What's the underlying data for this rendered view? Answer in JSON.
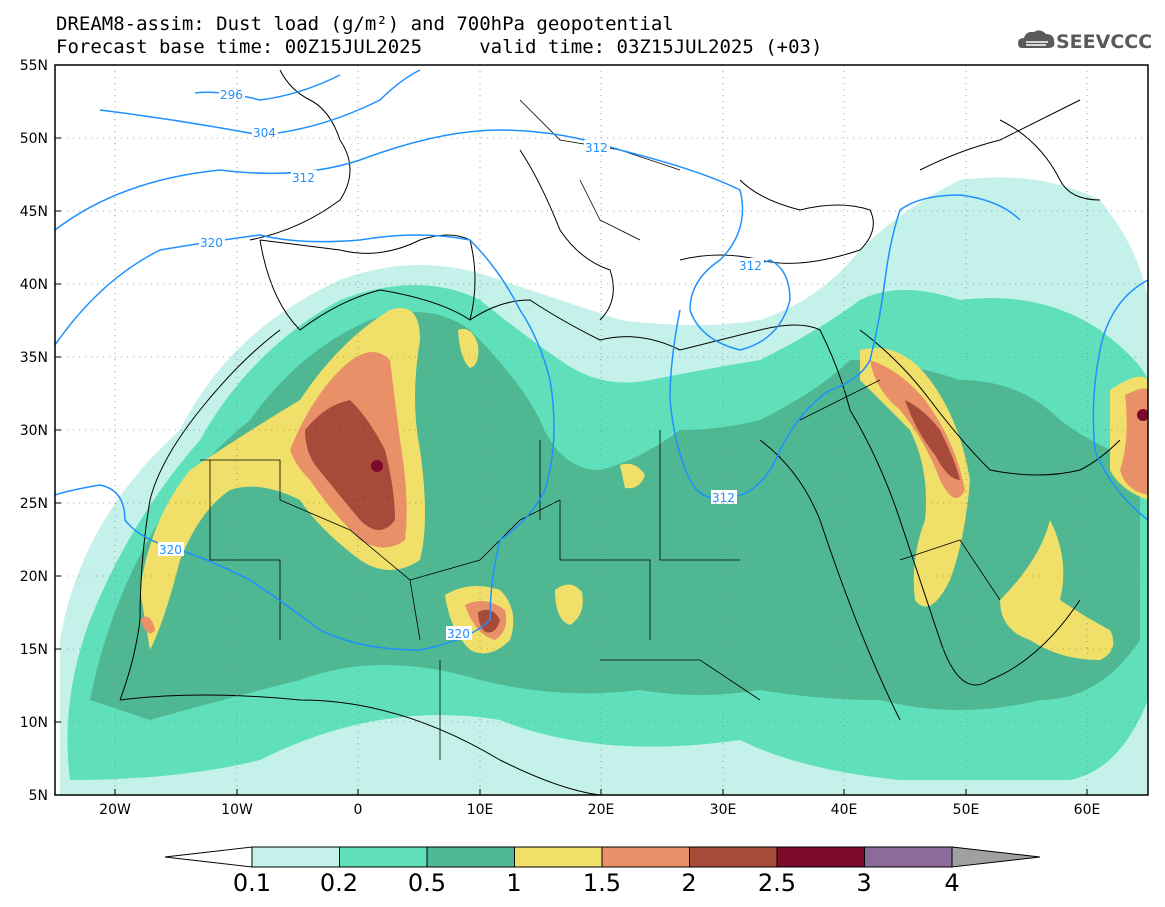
{
  "header": {
    "title_line1": "DREAM8-assim: Dust load (g/m²) and 700hPa geopotential",
    "title_line2": "Forecast base time: 00Z15JUL2025     valid time: 03Z15JUL2025 (+03)",
    "logo_text": "SEEVCCC"
  },
  "map": {
    "lat_labels": [
      "55N",
      "50N",
      "45N",
      "40N",
      "35N",
      "30N",
      "25N",
      "20N",
      "15N",
      "10N",
      "5N"
    ],
    "lon_labels": [
      "20W",
      "10W",
      "0",
      "10E",
      "20E",
      "30E",
      "40E",
      "50E",
      "60E"
    ],
    "contour_labels": [
      "296",
      "304",
      "312",
      "320",
      "312",
      "312",
      "312",
      "320",
      "320"
    ]
  },
  "colorbar": {
    "labels": [
      "0.1",
      "0.2",
      "0.5",
      "1",
      "1.5",
      "2",
      "2.5",
      "3",
      "4"
    ],
    "colors": [
      "#c4f2ea",
      "#5fe0bb",
      "#4fb893",
      "#f0e06a",
      "#ea9068",
      "#a84a3a",
      "#7c0a2a",
      "#8c6a9c",
      "#a0a0a0"
    ]
  }
}
